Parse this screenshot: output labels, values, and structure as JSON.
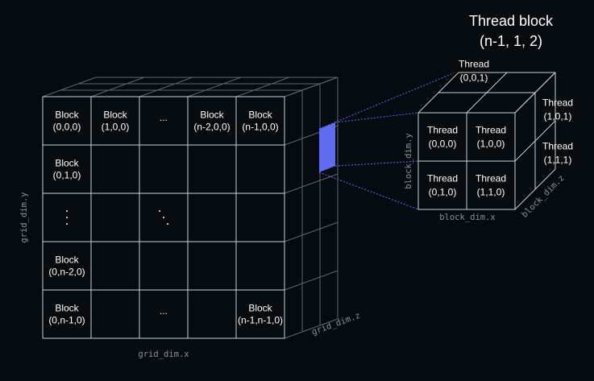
{
  "grid": {
    "cells": [
      {
        "col": 0,
        "row": 0,
        "lines": [
          "Block",
          "(0,0,0)"
        ]
      },
      {
        "col": 1,
        "row": 0,
        "lines": [
          "Block",
          "(1,0,0)"
        ]
      },
      {
        "col": 2,
        "row": 0,
        "lines": [
          "..."
        ]
      },
      {
        "col": 3,
        "row": 0,
        "lines": [
          "Block",
          "(n-2,0,0)"
        ]
      },
      {
        "col": 4,
        "row": 0,
        "lines": [
          "Block",
          "(n-1,0,0)"
        ]
      },
      {
        "col": 0,
        "row": 1,
        "lines": [
          "Block",
          "(0,1,0)"
        ]
      },
      {
        "col": 0,
        "row": 3,
        "lines": [
          "Block",
          "(0,n-2,0)"
        ]
      },
      {
        "col": 0,
        "row": 4,
        "lines": [
          "Block",
          "(0,n-1,0)"
        ]
      },
      {
        "col": 2,
        "row": 4,
        "lines": [
          "..."
        ]
      },
      {
        "col": 4,
        "row": 4,
        "lines": [
          "Block",
          "(n-1,n-1,0)"
        ]
      }
    ],
    "x_label": "grid_dim.x",
    "y_label": "grid_dim.y",
    "z_label": "grid_dim.z"
  },
  "thread_block": {
    "title_line1": "Thread block",
    "title_line2": "(n-1, 1, 2)",
    "front_cells": [
      {
        "col": 0,
        "row": 0,
        "lines": [
          "Thread",
          "(0,0,0)"
        ]
      },
      {
        "col": 1,
        "row": 0,
        "lines": [
          "Thread",
          "(1,0,0)"
        ]
      },
      {
        "col": 0,
        "row": 1,
        "lines": [
          "Thread",
          "(0,1,0)"
        ]
      },
      {
        "col": 1,
        "row": 1,
        "lines": [
          "Thread",
          "(1,1,0)"
        ]
      }
    ],
    "top_label": [
      "Thread",
      "(0,0,1)"
    ],
    "side_label_top": [
      "Thread",
      "(1,0,1)"
    ],
    "side_label_bottom": [
      "Thread",
      "(1,1,1)"
    ],
    "x_label": "block_dim.x",
    "y_label": "block_dim.y",
    "z_label": "block_dim.z"
  },
  "colors": {
    "background": "#060b10",
    "line": "#c9cfd4",
    "highlight": "#5f6cf0"
  }
}
